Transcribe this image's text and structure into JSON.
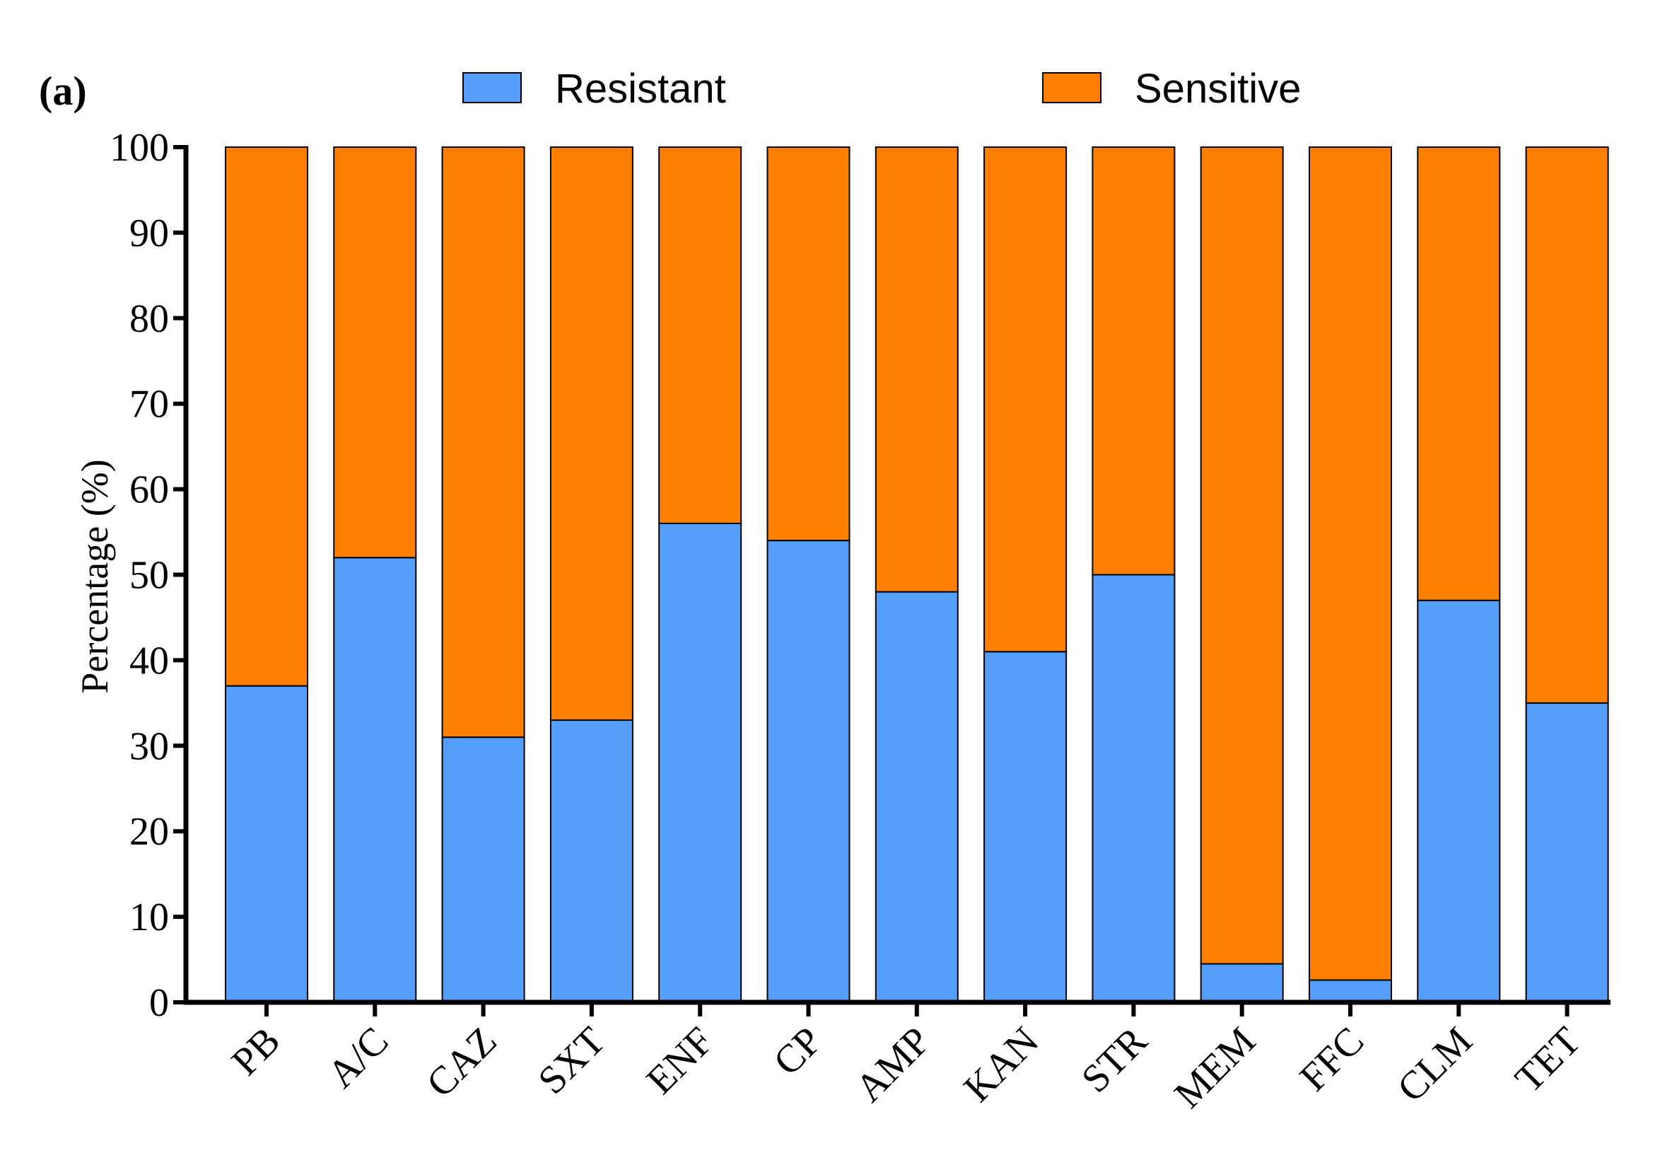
{
  "panel_label": "(a)",
  "chart_data": {
    "type": "bar",
    "stacked": true,
    "categories": [
      "PB",
      "A/C",
      "CAZ",
      "SXT",
      "ENF",
      "CP",
      "AMP",
      "KAN",
      "STR",
      "MEM",
      "FFC",
      "CLM",
      "TET"
    ],
    "series": [
      {
        "name": "Resistant",
        "color": "#559FFB",
        "values": [
          37,
          52,
          31,
          33,
          56,
          54,
          48,
          41,
          50,
          4.5,
          2.6,
          47,
          35
        ]
      },
      {
        "name": "Sensitive",
        "color": "#FF7F00",
        "values": [
          63,
          48,
          69,
          67,
          44,
          46,
          52,
          59,
          50,
          95.5,
          97.4,
          53,
          65
        ]
      }
    ],
    "title": "",
    "xlabel": "",
    "ylabel": "Percentage (%)",
    "ylim": [
      0,
      100
    ],
    "yticks": [
      0,
      10,
      20,
      30,
      40,
      50,
      60,
      70,
      80,
      90,
      100
    ],
    "legend_position": "top",
    "grid": false
  }
}
